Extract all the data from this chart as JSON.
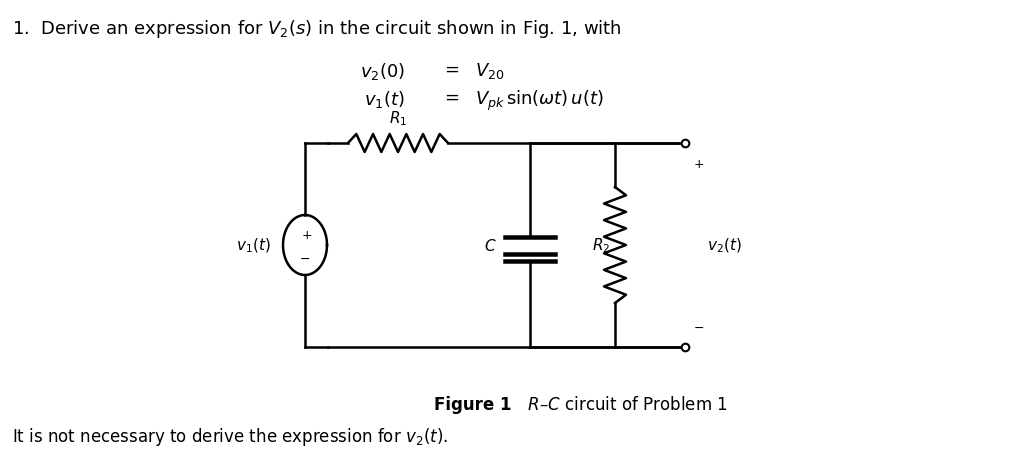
{
  "background_color": "#ffffff",
  "title_text": "1.  Derive an expression for $V_2(s)$ in the circuit shown in Fig. 1, with",
  "eq1_label": "$v_2(0)$",
  "eq1_equals": "=",
  "eq1_value": "$V_{20}$",
  "eq2_label": "$v_1(t)$",
  "eq2_equals": "=",
  "eq2_value": "$V_{pk}\\,\\mathrm{sin}(\\omega t)\\,u(t)$",
  "figure_caption_bold": "Figure 1",
  "figure_caption_rest": "   $R$–$C$ circuit of Problem 1",
  "footer_text": "It is not necessary to derive the expression for $v_2(t)$.",
  "fig_width": 10.24,
  "fig_height": 4.56,
  "dpi": 100,
  "title_fs": 13,
  "eq_fs": 13,
  "caption_fs": 12,
  "footer_fs": 12,
  "circuit_fs": 11
}
